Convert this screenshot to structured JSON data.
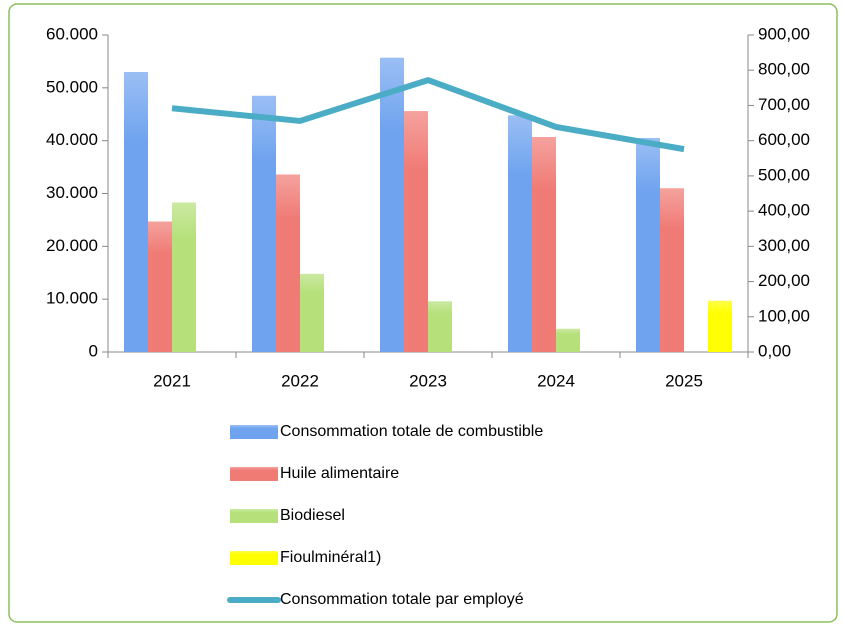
{
  "chart_data": {
    "type": "bar",
    "categories": [
      "2021",
      "2022",
      "2023",
      "2024",
      "2025"
    ],
    "series": [
      {
        "name": "Consommation totale de combustible",
        "color": "#6fa3ef",
        "values": [
          53000,
          48500,
          55700,
          44800,
          40500
        ]
      },
      {
        "name": "Huile alimentaire",
        "color": "#f07a74",
        "values": [
          24700,
          33600,
          45600,
          40700,
          31000
        ]
      },
      {
        "name": "Biodiesel",
        "color": "#b5e07a",
        "values": [
          28300,
          14800,
          9600,
          4400,
          null
        ]
      },
      {
        "name": "Fioulminéral1)",
        "color": "#ffff00",
        "values": [
          null,
          null,
          null,
          null,
          9700
        ]
      },
      {
        "name": "Consommation totale par employé",
        "color": "#4bacc6",
        "type": "line",
        "axis": "y2",
        "values": [
          692,
          656,
          772,
          639,
          576
        ]
      }
    ],
    "ylim": [
      0,
      60000
    ],
    "yticks": [
      0,
      {
        "value": 10000,
        "label": "10.000"
      },
      {
        "value": 20000,
        "label": "20.000"
      },
      {
        "value": 30000,
        "label": "30.000"
      },
      {
        "value": 40000,
        "label": "40.000"
      },
      {
        "value": 50000,
        "label": "50.000"
      },
      {
        "value": 60000,
        "label": "60.000"
      }
    ],
    "y2lim": [
      0,
      900
    ],
    "y2ticks": [
      {
        "value": 0,
        "label": "0,00"
      },
      {
        "value": 100,
        "label": "100,00"
      },
      {
        "value": 200,
        "label": "200,00"
      },
      {
        "value": 300,
        "label": "300,00"
      },
      {
        "value": 400,
        "label": "400,00"
      },
      {
        "value": 500,
        "label": "500,00"
      },
      {
        "value": 600,
        "label": "600,00"
      },
      {
        "value": 700,
        "label": "700,00"
      },
      {
        "value": 800,
        "label": "800,00"
      },
      {
        "value": 900,
        "label": "900,00"
      }
    ],
    "legend": "bottom"
  }
}
